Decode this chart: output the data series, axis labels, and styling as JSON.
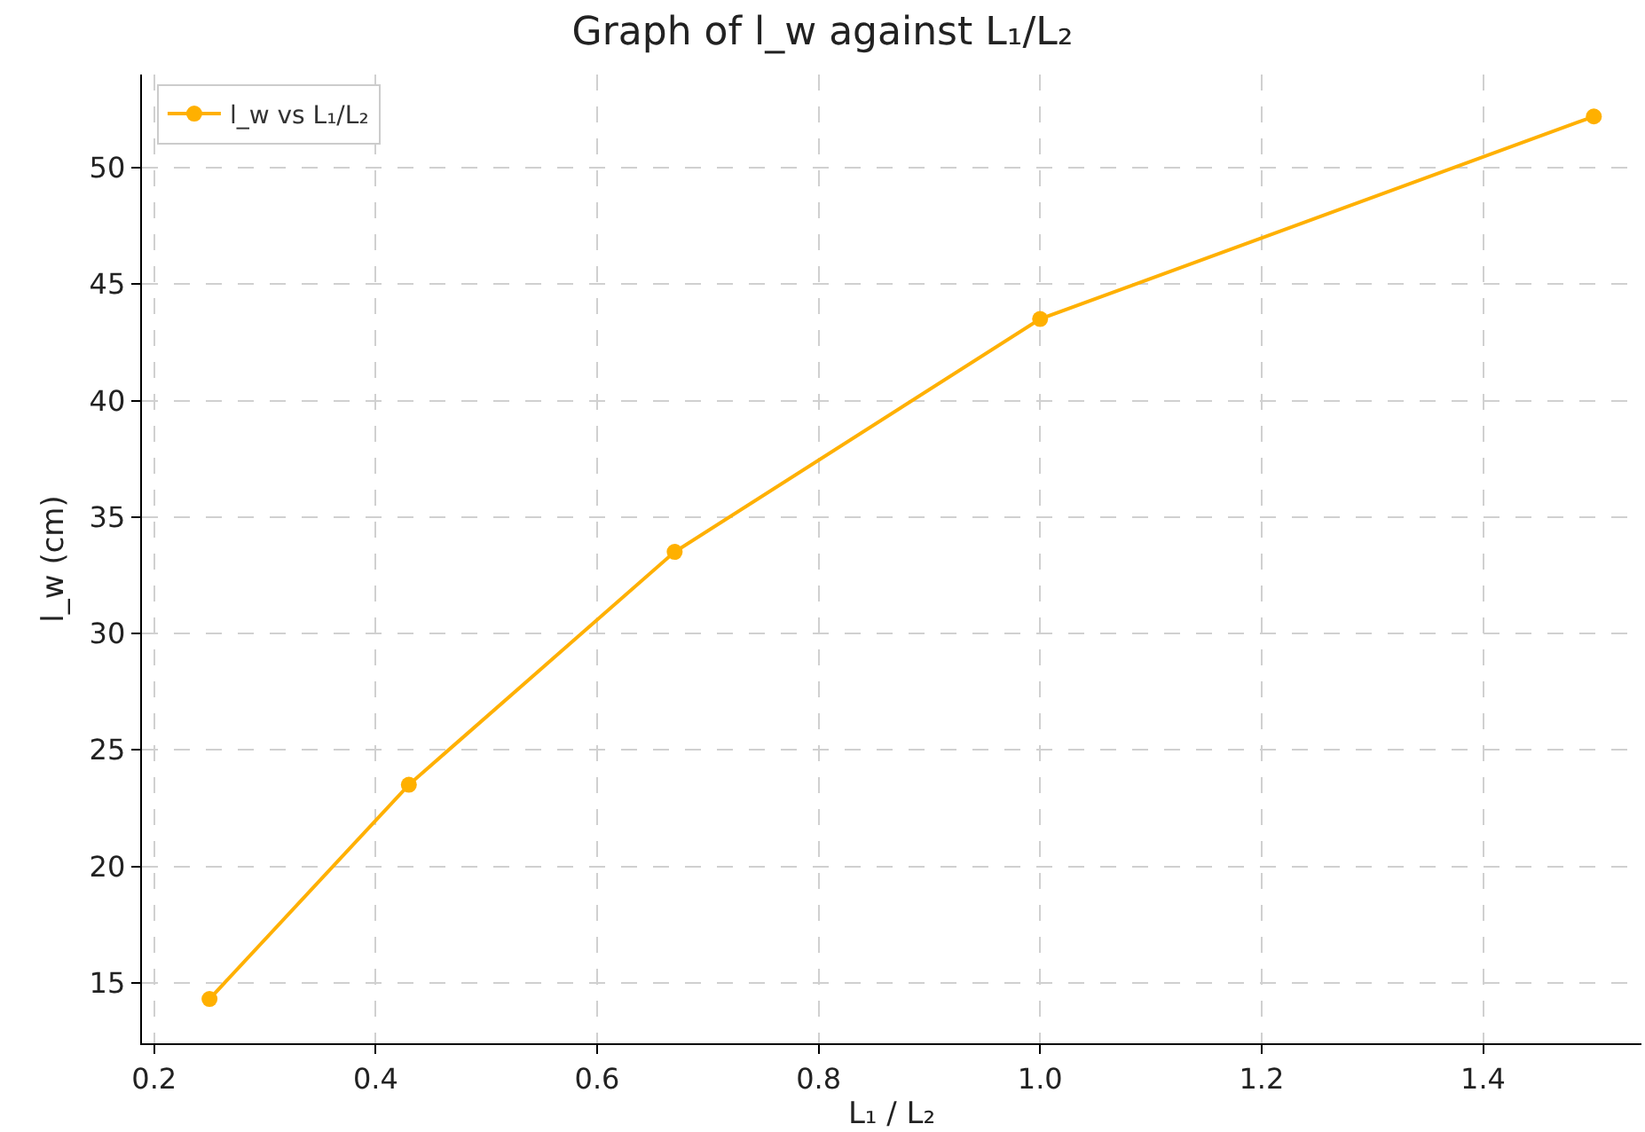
{
  "chart_data": {
    "type": "line",
    "title": "Graph of l_w against L₁/L₂",
    "xlabel": "L₁ / L₂",
    "ylabel": "l_w (cm)",
    "x": [
      0.25,
      0.43,
      0.67,
      1.0,
      1.5
    ],
    "series": [
      {
        "name": "l_w vs L₁/L₂",
        "color": "#ffb000",
        "values": [
          14.3,
          23.5,
          33.5,
          43.5,
          52.2
        ]
      }
    ],
    "xlim": [
      0.189,
      1.543
    ],
    "xticks": [
      0.2,
      0.4,
      0.6,
      0.8,
      {
        "value": 1,
        "label": "1.0"
      },
      1.2,
      1.4
    ],
    "ylim": [
      12.4,
      54.0
    ],
    "yticks": [
      15,
      20,
      25,
      30,
      35,
      40,
      45,
      50
    ],
    "grid": true,
    "legend": "top left",
    "marker": "circle",
    "line_style": "solid"
  }
}
